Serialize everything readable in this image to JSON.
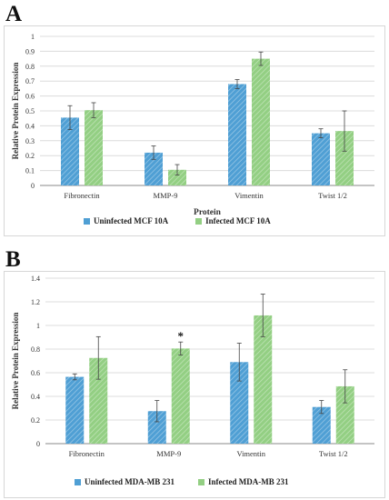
{
  "panels": [
    {
      "letter": "A",
      "legend": [
        "Uninfected MCF 10A",
        "Infected MCF 10A"
      ]
    },
    {
      "letter": "B",
      "legend": [
        "Uninfected MDA-MB 231",
        "Infected MDA-MB 231"
      ]
    }
  ],
  "colors": {
    "uninfected": "#4f9fd4",
    "infected": "#93cf83",
    "grid": "#dcdcdc",
    "axis": "#8a8a8a",
    "error": "#444444"
  },
  "chart_data": [
    {
      "type": "bar",
      "title": "",
      "xlabel": "Protein",
      "ylabel": "Relative Protein Expression",
      "ylim": [
        0,
        1
      ],
      "yticks": [
        "0",
        "0.1",
        "0.2",
        "0.3",
        "0.4",
        "0.5",
        "0.6",
        "0.7",
        "0.8",
        "0.9",
        "1"
      ],
      "yticks_values": [
        0,
        0.1,
        0.2,
        0.3,
        0.4,
        0.5,
        0.6,
        0.7,
        0.8,
        0.9,
        1
      ],
      "categories": [
        "Fibronectin",
        "MMP-9",
        "Vimentin",
        "Twist 1/2"
      ],
      "grid": true,
      "legend_position": "bottom-left",
      "series": [
        {
          "name": "Uninfected MCF 10A",
          "values": [
            0.455,
            0.22,
            0.68,
            0.35
          ],
          "error": [
            0.08,
            0.045,
            0.03,
            0.03
          ]
        },
        {
          "name": "Infected MCF 10A",
          "values": [
            0.505,
            0.105,
            0.85,
            0.365
          ],
          "error": [
            0.05,
            0.035,
            0.045,
            0.135
          ]
        }
      ],
      "annotations": []
    },
    {
      "type": "bar",
      "title": "",
      "xlabel": "",
      "ylabel": "Relative Protein Expression",
      "ylim": [
        0,
        1.4
      ],
      "yticks": [
        "0",
        "0.2",
        "0.4",
        "0.6",
        "0.8",
        "1",
        "1.2",
        "1.4"
      ],
      "yticks_values": [
        0,
        0.2,
        0.4,
        0.6,
        0.8,
        1,
        1.2,
        1.4
      ],
      "categories": [
        "Fibronectin",
        "MMP-9",
        "Vimentin",
        "Twist 1/2"
      ],
      "grid": true,
      "legend_position": "bottom-left",
      "series": [
        {
          "name": "Uninfected MDA-MB 231",
          "values": [
            0.565,
            0.275,
            0.69,
            0.31
          ],
          "error": [
            0.025,
            0.09,
            0.16,
            0.055
          ]
        },
        {
          "name": "Infected MDA-MB 231",
          "values": [
            0.725,
            0.805,
            1.085,
            0.485
          ],
          "error": [
            0.18,
            0.055,
            0.18,
            0.14
          ]
        }
      ],
      "annotations": [
        {
          "text": "*",
          "category": "MMP-9",
          "series": 1
        }
      ]
    }
  ]
}
